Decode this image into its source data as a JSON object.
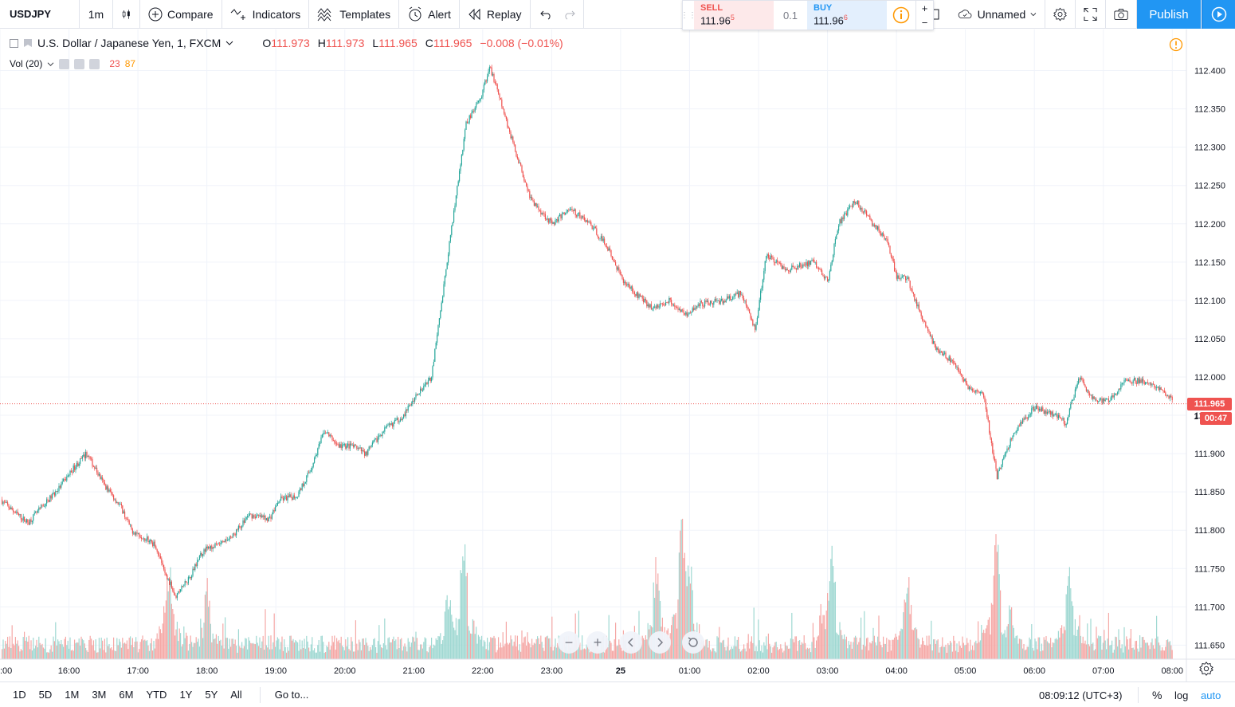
{
  "toolbar": {
    "symbol": "USDJPY",
    "interval": "1m",
    "compare_label": "Compare",
    "indicators_label": "Indicators",
    "templates_label": "Templates",
    "alert_label": "Alert",
    "replay_label": "Replay",
    "layout_name": "Unnamed",
    "publish_label": "Publish"
  },
  "trade": {
    "sell_label": "SELL",
    "sell_price": "111.96",
    "sell_pip": "5",
    "spread": "0.1",
    "buy_label": "BUY",
    "buy_price": "111.96",
    "buy_pip": "6",
    "plus": "+",
    "minus": "−"
  },
  "legend": {
    "title": "U.S. Dollar / Japanese Yen, 1, FXCM",
    "open_label": "O",
    "open": "111.973",
    "high_label": "H",
    "high": "111.973",
    "low_label": "L",
    "low": "111.965",
    "close_label": "C",
    "close": "111.965",
    "change": "−0.008 (−0.01%)",
    "vol_title": "Vol (20)",
    "vol_value_a": "23",
    "vol_value_b": "87"
  },
  "price_scale": {
    "current_price": "111.965",
    "countdown": "00:47",
    "countdown_prefix": "1"
  },
  "bottom": {
    "ranges": [
      "1D",
      "5D",
      "1M",
      "3M",
      "6M",
      "YTD",
      "1Y",
      "5Y",
      "All"
    ],
    "goto_label": "Go to...",
    "clock": "08:09:12 (UTC+3)",
    "percent_label": "%",
    "log_label": "log",
    "auto_label": "auto"
  },
  "colors": {
    "up": "#26a69a",
    "down": "#ef5350",
    "vol_up": "#9fd8d2",
    "vol_down": "#f5a8a6",
    "grid": "#f0f3fa",
    "accent": "#2196f3"
  },
  "chart_data": {
    "type": "candlestick",
    "title": "U.S. Dollar / Japanese Yen, 1, FXCM",
    "ylim": [
      111.64,
      112.412
    ],
    "y_ticks": [
      "112.400",
      "112.350",
      "112.300",
      "112.250",
      "112.200",
      "112.150",
      "112.100",
      "112.050",
      "112.000",
      "111.950",
      "111.900",
      "111.850",
      "111.800",
      "111.750",
      "111.700",
      "111.650"
    ],
    "x_ticks": [
      ":00",
      "16:00",
      "17:00",
      "18:00",
      "19:00",
      "20:00",
      "21:00",
      "22:00",
      "23:00",
      "25",
      "01:00",
      "02:00",
      "03:00",
      "04:00",
      "05:00",
      "06:00",
      "07:00",
      "08:00"
    ],
    "x_hours": [
      15,
      16,
      17,
      18,
      19,
      20,
      21,
      22,
      23,
      24,
      25,
      26,
      27,
      28,
      29,
      30,
      31,
      32
    ],
    "x_range_hours": [
      15,
      32.17
    ],
    "last_price": 111.965,
    "path": [
      [
        15.0,
        111.84
      ],
      [
        15.25,
        111.82
      ],
      [
        15.4,
        111.81
      ],
      [
        15.6,
        111.83
      ],
      [
        15.85,
        111.855
      ],
      [
        16.05,
        111.88
      ],
      [
        16.25,
        111.9
      ],
      [
        16.5,
        111.86
      ],
      [
        16.75,
        111.83
      ],
      [
        16.9,
        111.8
      ],
      [
        17.1,
        111.79
      ],
      [
        17.25,
        111.78
      ],
      [
        17.4,
        111.74
      ],
      [
        17.55,
        111.715
      ],
      [
        17.75,
        111.74
      ],
      [
        17.95,
        111.775
      ],
      [
        18.15,
        111.78
      ],
      [
        18.35,
        111.79
      ],
      [
        18.6,
        111.82
      ],
      [
        18.9,
        111.815
      ],
      [
        19.05,
        111.84
      ],
      [
        19.3,
        111.845
      ],
      [
        19.5,
        111.88
      ],
      [
        19.7,
        111.93
      ],
      [
        19.9,
        111.91
      ],
      [
        20.1,
        111.91
      ],
      [
        20.3,
        111.9
      ],
      [
        20.55,
        111.93
      ],
      [
        20.85,
        111.95
      ],
      [
        21.05,
        111.98
      ],
      [
        21.25,
        112.0
      ],
      [
        21.4,
        112.1
      ],
      [
        21.55,
        112.2
      ],
      [
        21.75,
        112.33
      ],
      [
        21.95,
        112.36
      ],
      [
        22.1,
        112.405
      ],
      [
        22.25,
        112.36
      ],
      [
        22.45,
        112.3
      ],
      [
        22.7,
        112.23
      ],
      [
        23.0,
        112.2
      ],
      [
        23.25,
        112.22
      ],
      [
        23.55,
        112.2
      ],
      [
        23.8,
        112.17
      ],
      [
        24.0,
        112.13
      ],
      [
        24.2,
        112.11
      ],
      [
        24.45,
        112.09
      ],
      [
        24.7,
        112.1
      ],
      [
        24.95,
        112.08
      ],
      [
        25.15,
        112.095
      ],
      [
        25.5,
        112.1
      ],
      [
        25.75,
        112.11
      ],
      [
        25.95,
        112.06
      ],
      [
        26.1,
        112.16
      ],
      [
        26.4,
        112.14
      ],
      [
        26.8,
        112.15
      ],
      [
        27.0,
        112.125
      ],
      [
        27.15,
        112.2
      ],
      [
        27.4,
        112.23
      ],
      [
        27.65,
        112.2
      ],
      [
        27.85,
        112.18
      ],
      [
        28.0,
        112.13
      ],
      [
        28.15,
        112.13
      ],
      [
        28.35,
        112.08
      ],
      [
        28.55,
        112.04
      ],
      [
        28.8,
        112.02
      ],
      [
        29.05,
        111.985
      ],
      [
        29.25,
        111.98
      ],
      [
        29.45,
        111.87
      ],
      [
        29.7,
        111.93
      ],
      [
        30.0,
        111.96
      ],
      [
        30.3,
        111.95
      ],
      [
        30.45,
        111.94
      ],
      [
        30.65,
        112.0
      ],
      [
        30.85,
        111.97
      ],
      [
        31.1,
        111.97
      ],
      [
        31.3,
        111.995
      ],
      [
        31.55,
        111.995
      ],
      [
        31.8,
        111.985
      ],
      [
        32.0,
        111.97
      ],
      [
        32.12,
        111.965
      ]
    ],
    "volume_spikes": [
      [
        17.45,
        0.75
      ],
      [
        18.0,
        0.55
      ],
      [
        21.5,
        0.55
      ],
      [
        21.72,
        0.9
      ],
      [
        24.52,
        0.8
      ],
      [
        24.88,
        1.0
      ],
      [
        24.99,
        0.75
      ],
      [
        27.05,
        0.85
      ],
      [
        28.15,
        0.65
      ],
      [
        29.45,
        0.95
      ],
      [
        29.65,
        0.4
      ],
      [
        30.5,
        0.7
      ]
    ]
  }
}
